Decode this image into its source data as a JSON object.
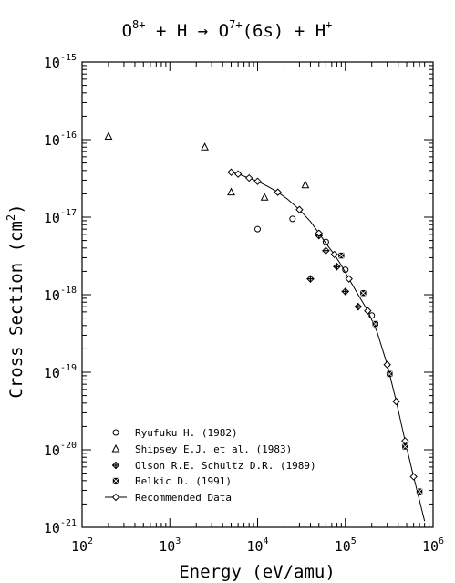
{
  "chart_data": {
    "type": "scatter",
    "title": {
      "lhs": "O",
      "lhs_sup": "8+",
      "plus1": "+",
      "h": "H",
      "arrow": "→",
      "product": "O",
      "product_sup": "7+",
      "state": "(6s)",
      "plus2": "+",
      "ion": "H",
      "ion_sup": "+"
    },
    "xlabel": "Energy (eV/amu)",
    "ylabel_main": "Cross Section (cm",
    "ylabel_sup": "2",
    "ylabel_close": ")",
    "x_scale": "log",
    "y_scale": "log",
    "xlim": [
      100,
      1000000
    ],
    "ylim": [
      1e-21,
      1e-15
    ],
    "x_ticks": [
      {
        "base": "10",
        "exp": "2",
        "value": 100
      },
      {
        "base": "10",
        "exp": "3",
        "value": 1000
      },
      {
        "base": "10",
        "exp": "4",
        "value": 10000
      },
      {
        "base": "10",
        "exp": "5",
        "value": 100000
      },
      {
        "base": "10",
        "exp": "6",
        "value": 1000000
      }
    ],
    "y_ticks": [
      {
        "base": "10",
        "exp": "-15",
        "value": 1e-15
      },
      {
        "base": "10",
        "exp": "-16",
        "value": 1e-16
      },
      {
        "base": "10",
        "exp": "-17",
        "value": 1e-17
      },
      {
        "base": "10",
        "exp": "-18",
        "value": 1e-18
      },
      {
        "base": "10",
        "exp": "-19",
        "value": 1e-19
      },
      {
        "base": "10",
        "exp": "-20",
        "value": 1e-20
      },
      {
        "base": "10",
        "exp": "-21",
        "value": 1e-21
      }
    ],
    "legend_position": "bottom-left",
    "series": [
      {
        "name": "Ryufuku H. (1982)",
        "marker": "circle",
        "points": [
          [
            10000,
            7e-18
          ],
          [
            25000,
            9.5e-18
          ],
          [
            60000,
            4.8e-18
          ],
          [
            100000,
            2.1e-18
          ],
          [
            200000,
            5.4e-19
          ]
        ]
      },
      {
        "name": "Shipsey E.J. et al. (1983)",
        "marker": "triangle",
        "points": [
          [
            200,
            1.1e-16
          ],
          [
            2500,
            8e-17
          ],
          [
            5000,
            2.1e-17
          ],
          [
            12000,
            1.8e-17
          ],
          [
            35000,
            2.6e-17
          ]
        ]
      },
      {
        "name": "Olson R.E. Schultz D.R. (1989)",
        "marker": "diamond-cross",
        "points": [
          [
            40000,
            1.6e-18
          ],
          [
            50000,
            5.8e-18
          ],
          [
            60000,
            3.7e-18
          ],
          [
            80000,
            2.3e-18
          ],
          [
            100000,
            1.1e-18
          ],
          [
            140000,
            7e-19
          ]
        ]
      },
      {
        "name": "Belkic D. (1991)",
        "marker": "star",
        "points": [
          [
            90000,
            3.2e-18
          ],
          [
            160000,
            1.05e-18
          ],
          [
            220000,
            4.2e-19
          ],
          [
            320000,
            9.5e-20
          ],
          [
            480000,
            1.1e-20
          ],
          [
            700000,
            2.9e-21
          ]
        ]
      },
      {
        "name": "Recommended Data",
        "marker": "diamond-line",
        "points": [
          [
            5000,
            3.8e-17
          ],
          [
            6000,
            3.6e-17
          ],
          [
            8000,
            3.2e-17
          ],
          [
            10000,
            2.9e-17
          ],
          [
            13000,
            2.5e-17
          ],
          [
            17000,
            2.1e-17
          ],
          [
            22000,
            1.7e-17
          ],
          [
            30000,
            1.25e-17
          ],
          [
            40000,
            8.8e-18
          ],
          [
            50000,
            6.2e-18
          ],
          [
            60000,
            4.6e-18
          ],
          [
            75000,
            3.3e-18
          ],
          [
            90000,
            2.4e-18
          ],
          [
            110000,
            1.6e-18
          ],
          [
            140000,
            1e-18
          ],
          [
            180000,
            6.2e-19
          ],
          [
            230000,
            3.3e-19
          ],
          [
            300000,
            1.25e-19
          ],
          [
            380000,
            4.2e-20
          ],
          [
            480000,
            1.3e-20
          ],
          [
            600000,
            4.5e-21
          ],
          [
            800000,
            1.2e-21
          ]
        ]
      }
    ]
  }
}
